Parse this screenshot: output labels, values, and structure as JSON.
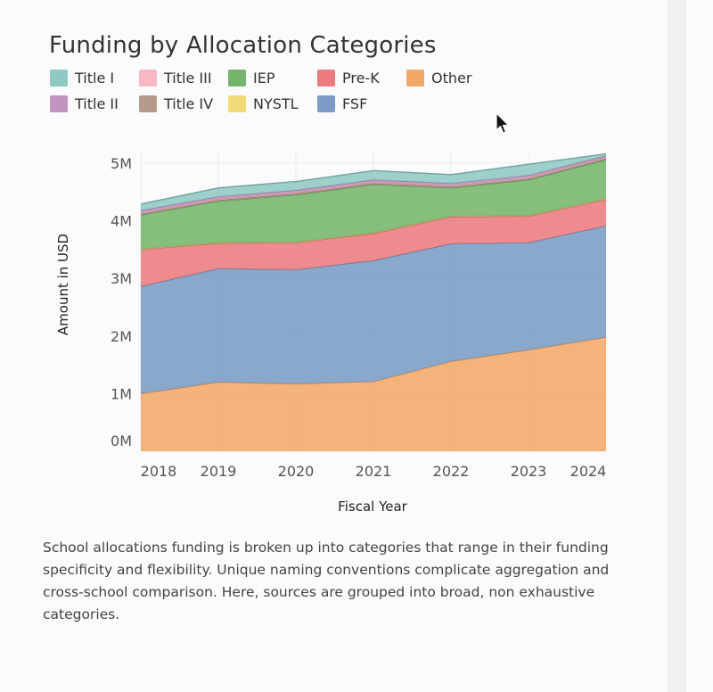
{
  "page": {
    "caption": "School allocations funding is broken up into categories that range in their funding specificity and flexibility. Unique naming conventions complicate aggregation and cross-school comparison. Here, sources are grouped into broad, non exhaustive categories."
  },
  "chart_data": {
    "type": "area",
    "stacked": true,
    "title": "Funding by Allocation Categories",
    "xlabel": "Fiscal Year",
    "ylabel": "Amount in USD",
    "x": [
      "2018",
      "2019",
      "2020",
      "2021",
      "2022",
      "2023",
      "2024"
    ],
    "ylim": [
      0,
      5200000
    ],
    "yticks": [
      0,
      1000000,
      2000000,
      3000000,
      4000000,
      5000000
    ],
    "ytick_labels": [
      "0M",
      "1M",
      "2M",
      "3M",
      "4M",
      "5M"
    ],
    "grid": true,
    "legend_position": "top",
    "legend": [
      {
        "name": "Title I",
        "color": "#8fc9c4"
      },
      {
        "name": "Title III",
        "color": "#f7b8c4"
      },
      {
        "name": "IEP",
        "color": "#74b56b"
      },
      {
        "name": "Pre-K",
        "color": "#eb7b7e"
      },
      {
        "name": "Other",
        "color": "#f2a868"
      },
      {
        "name": "Title II",
        "color": "#c294c0"
      },
      {
        "name": "Title IV",
        "color": "#b59a8c"
      },
      {
        "name": "NYSTL",
        "color": "#f2d978"
      },
      {
        "name": "FSF",
        "color": "#7a9cc4"
      }
    ],
    "series": [
      {
        "name": "Other",
        "color": "#f2a868",
        "values": [
          1000000,
          1200000,
          1170000,
          1210000,
          1560000,
          1760000,
          1980000
        ]
      },
      {
        "name": "FSF",
        "color": "#7a9cc4",
        "values": [
          1860000,
          1970000,
          1980000,
          2100000,
          2040000,
          1860000,
          1930000
        ]
      },
      {
        "name": "Pre-K",
        "color": "#eb7b7e",
        "values": [
          640000,
          440000,
          470000,
          470000,
          470000,
          460000,
          460000
        ]
      },
      {
        "name": "NYSTL",
        "color": "#f2d978",
        "values": [
          10000,
          10000,
          10000,
          10000,
          10000,
          10000,
          10000
        ]
      },
      {
        "name": "IEP",
        "color": "#74b56b",
        "values": [
          590000,
          720000,
          820000,
          840000,
          490000,
          620000,
          680000
        ]
      },
      {
        "name": "Title IV",
        "color": "#b59a8c",
        "values": [
          20000,
          20000,
          20000,
          20000,
          20000,
          20000,
          20000
        ]
      },
      {
        "name": "Title III",
        "color": "#f7b8c4",
        "values": [
          20000,
          20000,
          20000,
          20000,
          20000,
          20000,
          20000
        ]
      },
      {
        "name": "Title II",
        "color": "#c294c0",
        "values": [
          40000,
          40000,
          40000,
          40000,
          40000,
          40000,
          30000
        ]
      },
      {
        "name": "Title I",
        "color": "#8fc9c4",
        "values": [
          110000,
          150000,
          150000,
          160000,
          150000,
          190000,
          30000
        ]
      }
    ]
  }
}
